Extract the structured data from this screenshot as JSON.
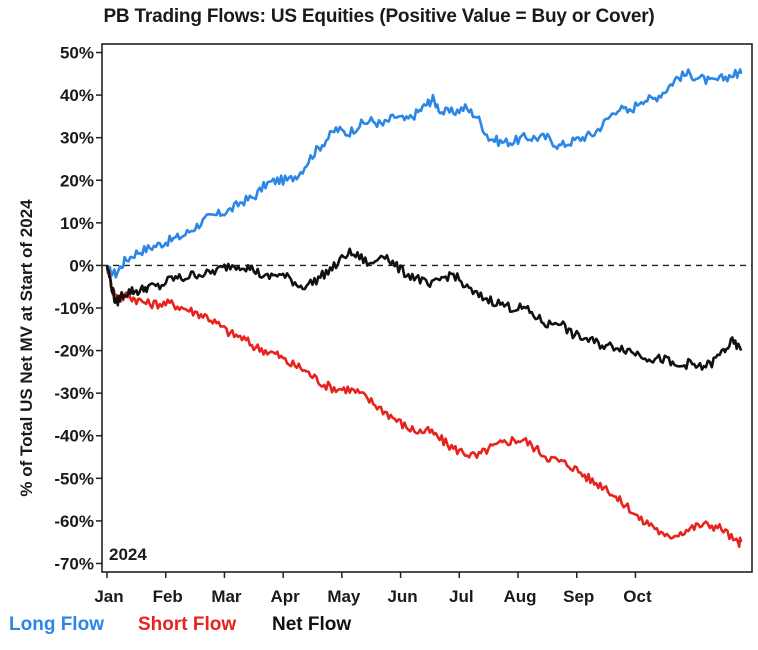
{
  "chart_data": {
    "type": "line",
    "title": "PB Trading Flows: US Equities (Positive Value = Buy or Cover)",
    "ylabel": "% of Total US Net MV at Start of 2024",
    "xlabel": "",
    "year_label": "2024",
    "ylim": [
      -72,
      52
    ],
    "xlim": [
      0,
      10.9
    ],
    "y_ticks": [
      50,
      40,
      30,
      20,
      10,
      0,
      -10,
      -20,
      -30,
      -40,
      -50,
      -60,
      -70
    ],
    "y_tick_labels": [
      "50%",
      "40%",
      "30%",
      "20%",
      "10%",
      "0%",
      "-10%",
      "-20%",
      "-30%",
      "-40%",
      "-50%",
      "-60%",
      "-70%"
    ],
    "x_ticks": [
      0,
      1,
      2,
      3,
      4,
      5,
      6,
      7,
      8,
      9
    ],
    "x_tick_labels": [
      "Jan",
      "Feb",
      "Mar",
      "Apr",
      "May",
      "Jun",
      "Jul",
      "Aug",
      "Sep",
      "Oct"
    ],
    "reference_line": {
      "y": 0,
      "style": "dashed"
    },
    "series": [
      {
        "name": "Long Flow",
        "color": "#2b86e6",
        "x": [
          0,
          0.15,
          0.3,
          0.5,
          0.7,
          0.9,
          1.1,
          1.3,
          1.5,
          1.7,
          1.9,
          2.1,
          2.3,
          2.5,
          2.7,
          2.9,
          3.1,
          3.3,
          3.5,
          3.7,
          3.9,
          4.1,
          4.3,
          4.5,
          4.7,
          4.9,
          5.1,
          5.3,
          5.45,
          5.55,
          5.7,
          5.9,
          6.1,
          6.3,
          6.5,
          6.7,
          6.9,
          7.1,
          7.3,
          7.5,
          7.7,
          7.9,
          8.1,
          8.3,
          8.5,
          8.7,
          8.9,
          9.1,
          9.3,
          9.5,
          9.7,
          9.9,
          10.1,
          10.3,
          10.5,
          10.7,
          10.8
        ],
        "y": [
          -1,
          -2,
          1,
          3,
          4,
          5,
          6,
          7,
          9,
          11,
          12,
          13,
          15,
          16,
          19,
          20,
          20,
          22,
          26,
          29,
          32,
          31,
          33,
          34,
          33,
          35,
          34,
          36,
          38,
          39,
          36,
          36,
          37,
          35,
          30,
          29,
          29,
          30,
          30,
          30,
          28,
          29,
          30,
          31,
          34,
          37,
          36,
          39,
          39,
          41,
          44,
          45,
          44,
          43,
          44,
          45,
          45
        ]
      },
      {
        "name": "Short Flow",
        "color": "#e8231e",
        "x": [
          0,
          0.1,
          0.2,
          0.35,
          0.5,
          0.7,
          0.9,
          1.1,
          1.3,
          1.5,
          1.7,
          1.9,
          2.1,
          2.3,
          2.5,
          2.7,
          2.9,
          3.1,
          3.3,
          3.5,
          3.7,
          3.9,
          4.1,
          4.3,
          4.5,
          4.7,
          4.9,
          5.1,
          5.3,
          5.5,
          5.7,
          5.9,
          6.1,
          6.3,
          6.5,
          6.7,
          6.9,
          7.1,
          7.3,
          7.5,
          7.7,
          7.9,
          8.1,
          8.3,
          8.5,
          8.7,
          8.9,
          9.1,
          9.3,
          9.5,
          9.7,
          9.9,
          10.1,
          10.3,
          10.5,
          10.7,
          10.8
        ],
        "y": [
          0,
          -6,
          -8,
          -7,
          -8,
          -9,
          -9,
          -9,
          -10,
          -11,
          -12,
          -14,
          -16,
          -17,
          -19,
          -20,
          -21,
          -23,
          -24,
          -26,
          -28,
          -29,
          -29,
          -30,
          -32,
          -34,
          -36,
          -38,
          -39,
          -39,
          -41,
          -43,
          -44,
          -45,
          -43,
          -42,
          -41,
          -41,
          -43,
          -45,
          -46,
          -47,
          -49,
          -51,
          -52,
          -55,
          -57,
          -60,
          -61,
          -64,
          -63,
          -62,
          -61,
          -61,
          -62,
          -65,
          -65
        ]
      },
      {
        "name": "Net Flow",
        "color": "#111111",
        "x": [
          0,
          0.08,
          0.15,
          0.25,
          0.4,
          0.55,
          0.7,
          0.9,
          1.1,
          1.3,
          1.5,
          1.7,
          1.9,
          2.1,
          2.3,
          2.5,
          2.7,
          2.9,
          3.1,
          3.3,
          3.5,
          3.7,
          3.9,
          4.1,
          4.3,
          4.5,
          4.7,
          4.9,
          5.1,
          5.3,
          5.5,
          5.7,
          5.9,
          6.1,
          6.3,
          6.5,
          6.7,
          6.9,
          7.1,
          7.3,
          7.5,
          7.7,
          7.9,
          8.1,
          8.3,
          8.5,
          8.7,
          8.9,
          9.1,
          9.3,
          9.5,
          9.7,
          9.9,
          10.1,
          10.3,
          10.5,
          10.65,
          10.8
        ],
        "y": [
          0,
          -5,
          -9,
          -7,
          -6,
          -6,
          -5,
          -5,
          -3,
          -3,
          -2,
          -2,
          -1,
          0,
          0,
          -1,
          -3,
          -2,
          -3,
          -5,
          -4,
          -2,
          0,
          3,
          2,
          0,
          3,
          0,
          -2,
          -3,
          -5,
          -3,
          -2,
          -5,
          -7,
          -8,
          -9,
          -10,
          -10,
          -12,
          -14,
          -13,
          -16,
          -17,
          -18,
          -19,
          -19,
          -20,
          -21,
          -22,
          -22,
          -24,
          -23,
          -24,
          -23,
          -20,
          -18,
          -20
        ]
      }
    ]
  }
}
